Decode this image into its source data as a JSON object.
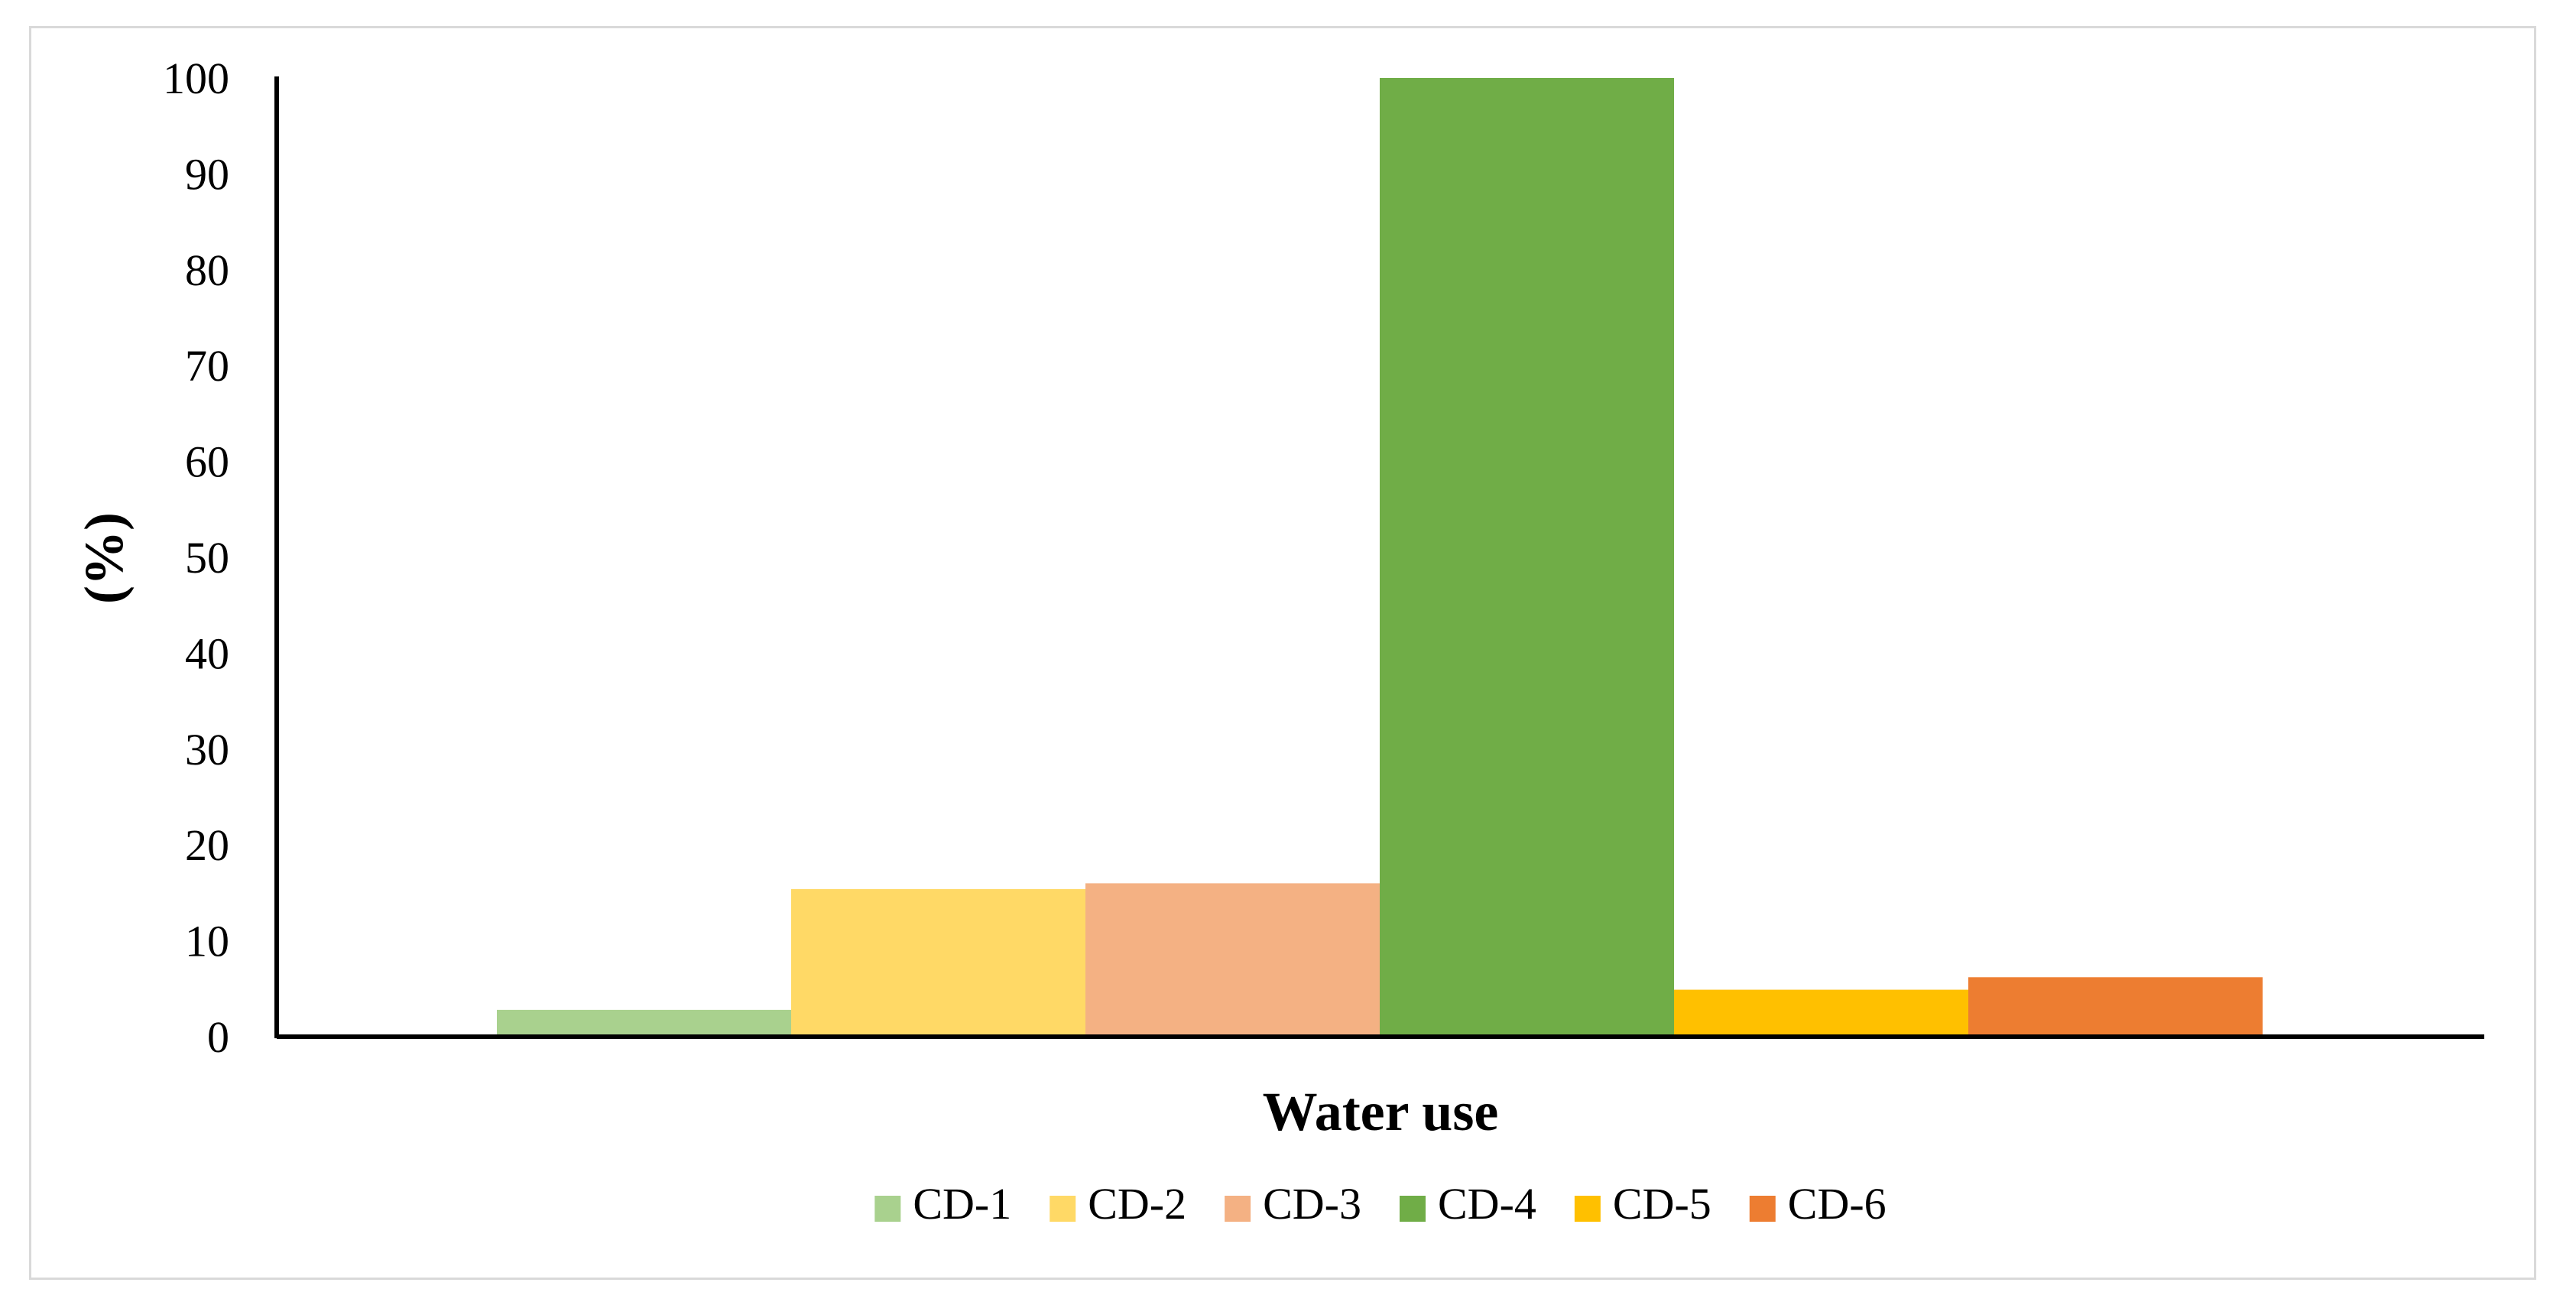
{
  "chart_data": {
    "type": "bar",
    "title": "",
    "xlabel": "Water use",
    "ylabel": "(%)",
    "ylim": [
      0,
      100
    ],
    "yticks": [
      0,
      10,
      20,
      30,
      40,
      50,
      60,
      70,
      80,
      90,
      100
    ],
    "categories": [
      "Water use"
    ],
    "legend_position": "bottom",
    "grid": false,
    "series": [
      {
        "name": "CD-1",
        "values": [
          2.8
        ],
        "color": "#a9d18e"
      },
      {
        "name": "CD-2",
        "values": [
          15.4
        ],
        "color": "#ffd966"
      },
      {
        "name": "CD-3",
        "values": [
          16.0
        ],
        "color": "#f4b183"
      },
      {
        "name": "CD-4",
        "values": [
          100
        ],
        "color": "#70ad47"
      },
      {
        "name": "CD-5",
        "values": [
          4.9
        ],
        "color": "#ffc000"
      },
      {
        "name": "CD-6",
        "values": [
          6.2
        ],
        "color": "#ed7d31"
      }
    ]
  }
}
